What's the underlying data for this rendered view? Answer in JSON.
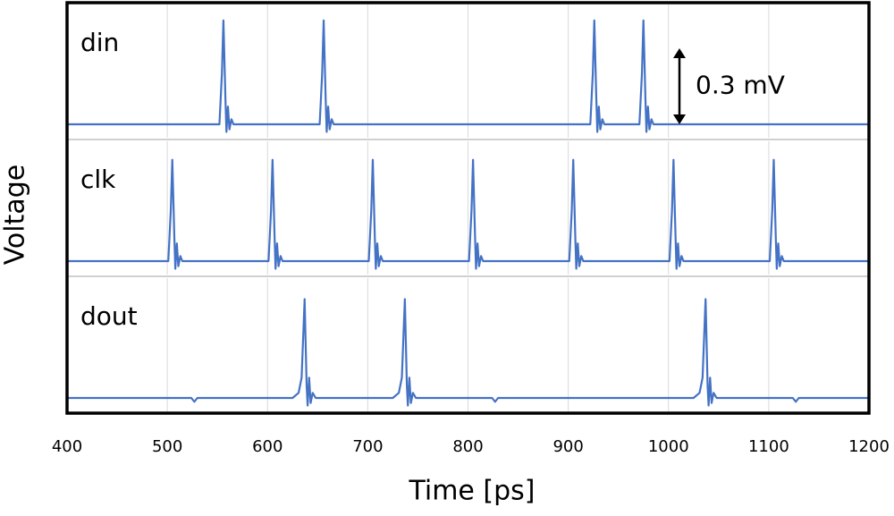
{
  "chart_data": {
    "type": "line",
    "xlabel": "Time [ps]",
    "ylabel": "Voltage",
    "xlim": [
      400,
      1200
    ],
    "xticks": [
      400,
      500,
      600,
      700,
      800,
      900,
      1000,
      1100,
      1200
    ],
    "ylim": [
      -0.06,
      0.48
    ],
    "grid": true,
    "scale_bar": {
      "value": 0.3,
      "label": "0.3 mV"
    },
    "series": [
      {
        "name": "din",
        "color": "#4472c4",
        "x": [
          400,
          552,
          554.5,
          556,
          558,
          559,
          560.5,
          562,
          564,
          566,
          652,
          654.5,
          656,
          658,
          659,
          660.5,
          662,
          664,
          666,
          922,
          924.5,
          926,
          928,
          929,
          930.5,
          932,
          934,
          936,
          971,
          973.5,
          975,
          977,
          978,
          979.5,
          981,
          983,
          985,
          1200
        ],
        "values": [
          0,
          0,
          0.2,
          0.41,
          0.1,
          -0.03,
          0.07,
          -0.02,
          0.02,
          0,
          0,
          0.2,
          0.41,
          0.1,
          -0.03,
          0.07,
          -0.02,
          0.02,
          0,
          0,
          0.2,
          0.41,
          0.1,
          -0.03,
          0.07,
          -0.02,
          0.02,
          0,
          0,
          0.2,
          0.41,
          0.1,
          -0.03,
          0.07,
          -0.02,
          0.02,
          0,
          0
        ]
      },
      {
        "name": "clk",
        "color": "#4472c4",
        "x": [
          400,
          501,
          503.5,
          505,
          507,
          508,
          509.5,
          511,
          513,
          515,
          601,
          603.5,
          605,
          607,
          608,
          609.5,
          611,
          613,
          615,
          701,
          703.5,
          705,
          707,
          708,
          709.5,
          711,
          713,
          715,
          801,
          803.5,
          805,
          807,
          808,
          809.5,
          811,
          813,
          815,
          901,
          903.5,
          905,
          907,
          908,
          909.5,
          911,
          913,
          915,
          1001,
          1003.5,
          1005,
          1007,
          1008,
          1009.5,
          1011,
          1013,
          1015,
          1101,
          1103.5,
          1105,
          1107,
          1108,
          1109.5,
          1111,
          1113,
          1115,
          1200
        ],
        "values": [
          0,
          0,
          0.2,
          0.4,
          0.1,
          -0.03,
          0.07,
          -0.02,
          0.02,
          0,
          0,
          0.2,
          0.4,
          0.1,
          -0.03,
          0.07,
          -0.02,
          0.02,
          0,
          0,
          0.2,
          0.4,
          0.1,
          -0.03,
          0.07,
          -0.02,
          0.02,
          0,
          0,
          0.2,
          0.4,
          0.1,
          -0.03,
          0.07,
          -0.02,
          0.02,
          0,
          0,
          0.2,
          0.4,
          0.1,
          -0.03,
          0.07,
          -0.02,
          0.02,
          0,
          0,
          0.2,
          0.4,
          0.1,
          -0.03,
          0.07,
          -0.02,
          0.02,
          0,
          0,
          0.2,
          0.4,
          0.1,
          -0.03,
          0.07,
          -0.02,
          0.02,
          0,
          0
        ]
      },
      {
        "name": "dout",
        "color": "#4472c4",
        "x": [
          400,
          524,
          527,
          530,
          625,
          631,
          634,
          637,
          639,
          640,
          641.5,
          643,
          645,
          648,
          725,
          731,
          734,
          737,
          739,
          740,
          741.5,
          743,
          745,
          748,
          824,
          827,
          830,
          1025,
          1031,
          1034,
          1037,
          1039,
          1040,
          1041.5,
          1043,
          1045,
          1048,
          1124,
          1127,
          1130,
          1200
        ],
        "values": [
          0,
          0,
          -0.015,
          0,
          0,
          0.02,
          0.08,
          0.39,
          0.05,
          -0.03,
          0.08,
          -0.02,
          0.02,
          0,
          0,
          0.02,
          0.08,
          0.39,
          0.05,
          -0.03,
          0.08,
          -0.02,
          0.02,
          0,
          0,
          -0.015,
          0,
          0,
          0.02,
          0.08,
          0.39,
          0.05,
          -0.03,
          0.08,
          -0.02,
          0.02,
          0,
          0,
          -0.015,
          0,
          0
        ]
      }
    ]
  }
}
